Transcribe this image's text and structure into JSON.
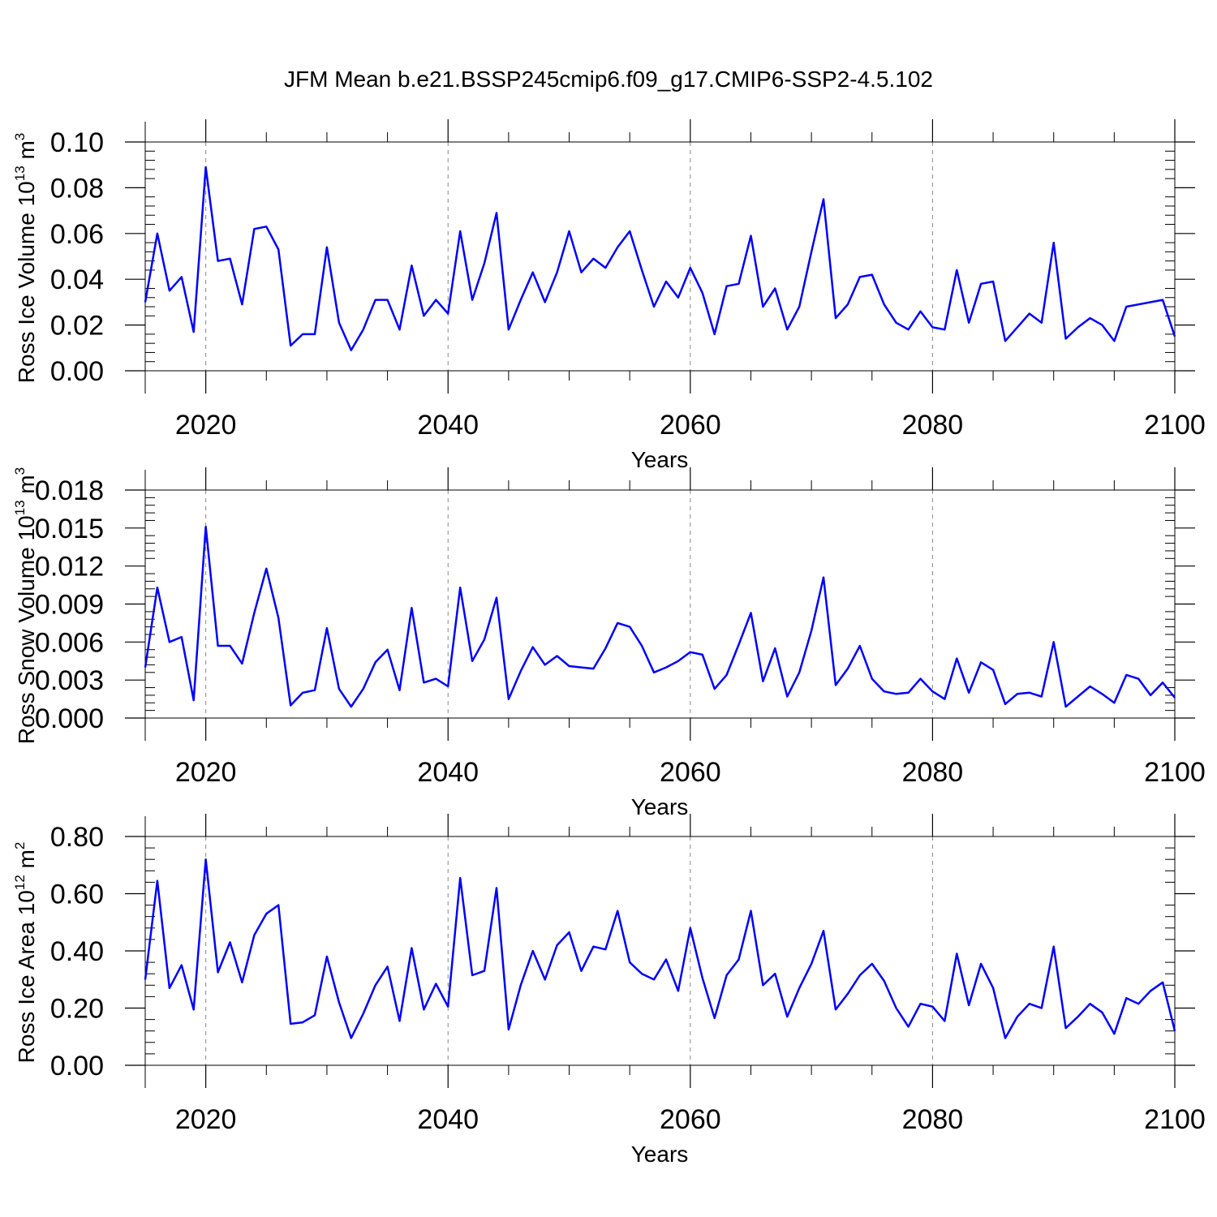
{
  "page": {
    "title": "JFM Mean b.e21.BSSP245cmip6.f09_g17.CMIP6-SSP2-4.5.102"
  },
  "style": {
    "line_color": "#0000ff",
    "axis_color": "#000000",
    "grid_color": "#888888"
  },
  "chart_data": [
    {
      "type": "line",
      "title": "",
      "xlabel": "Years",
      "ylabel": "Ross Ice Volume 10",
      "ylabel_sup": "13",
      "ylabel_unit": "m",
      "ylabel_unit_sup": "3",
      "xlim": [
        2015,
        2100
      ],
      "ylim": [
        0.0,
        0.1
      ],
      "xticks": [
        2020,
        2040,
        2060,
        2080,
        2100
      ],
      "yticks": [
        "0.00",
        "0.02",
        "0.04",
        "0.06",
        "0.08",
        "0.10"
      ],
      "grid": "vertical dashed at major x ticks",
      "series": [
        {
          "x": [
            2015,
            2016,
            2017,
            2018,
            2019,
            2020,
            2021,
            2022,
            2023,
            2024,
            2025,
            2026,
            2027,
            2028,
            2029,
            2030,
            2031,
            2032,
            2033,
            2034,
            2035,
            2036,
            2037,
            2038,
            2039,
            2040,
            2041,
            2042,
            2043,
            2044,
            2045,
            2046,
            2047,
            2048,
            2049,
            2050,
            2051,
            2052,
            2053,
            2054,
            2055,
            2056,
            2057,
            2058,
            2059,
            2060,
            2061,
            2062,
            2063,
            2064,
            2065,
            2066,
            2067,
            2068,
            2069,
            2070,
            2071,
            2072,
            2073,
            2074,
            2075,
            2076,
            2077,
            2078,
            2079,
            2080,
            2081,
            2082,
            2083,
            2084,
            2085,
            2086,
            2087,
            2088,
            2089,
            2090,
            2091,
            2092,
            2093,
            2094,
            2095,
            2096,
            2099,
            2100
          ],
          "y": [
            0.03,
            0.06,
            0.035,
            0.041,
            0.017,
            0.089,
            0.048,
            0.049,
            0.029,
            0.062,
            0.063,
            0.053,
            0.011,
            0.016,
            0.016,
            0.054,
            0.021,
            0.009,
            0.018,
            0.031,
            0.031,
            0.018,
            0.046,
            0.024,
            0.031,
            0.025,
            0.061,
            0.031,
            0.047,
            0.069,
            0.018,
            0.031,
            0.043,
            0.03,
            0.043,
            0.061,
            0.043,
            0.049,
            0.045,
            0.054,
            0.061,
            0.044,
            0.028,
            0.039,
            0.032,
            0.045,
            0.034,
            0.016,
            0.037,
            0.038,
            0.059,
            0.028,
            0.036,
            0.018,
            0.028,
            0.052,
            0.075,
            0.023,
            0.029,
            0.041,
            0.042,
            0.029,
            0.021,
            0.018,
            0.026,
            0.019,
            0.018,
            0.044,
            0.021,
            0.038,
            0.039,
            0.013,
            0.019,
            0.025,
            0.021,
            0.056,
            0.014,
            0.019,
            0.023,
            0.02,
            0.013,
            0.028,
            0.031,
            0.015
          ]
        }
      ]
    },
    {
      "type": "line",
      "title": "",
      "xlabel": "Years",
      "ylabel": "Ross Snow Volume 10",
      "ylabel_sup": "13",
      "ylabel_unit": "m",
      "ylabel_unit_sup": "3",
      "xlim": [
        2015,
        2100
      ],
      "ylim": [
        0.0,
        0.018
      ],
      "xticks": [
        2020,
        2040,
        2060,
        2080,
        2100
      ],
      "yticks": [
        "0.000",
        "0.003",
        "0.006",
        "0.009",
        "0.012",
        "0.015",
        "0.018"
      ],
      "grid": "vertical dashed at major x ticks",
      "series": [
        {
          "x": [
            2015,
            2016,
            2017,
            2018,
            2019,
            2020,
            2021,
            2022,
            2023,
            2024,
            2025,
            2026,
            2027,
            2028,
            2029,
            2030,
            2031,
            2032,
            2033,
            2034,
            2035,
            2036,
            2037,
            2038,
            2039,
            2040,
            2041,
            2042,
            2043,
            2044,
            2045,
            2046,
            2047,
            2048,
            2049,
            2050,
            2051,
            2052,
            2053,
            2054,
            2055,
            2056,
            2057,
            2058,
            2059,
            2060,
            2061,
            2062,
            2063,
            2064,
            2065,
            2066,
            2067,
            2068,
            2069,
            2070,
            2071,
            2072,
            2073,
            2074,
            2075,
            2076,
            2077,
            2078,
            2079,
            2080,
            2081,
            2082,
            2083,
            2084,
            2085,
            2086,
            2087,
            2088,
            2089,
            2090,
            2091,
            2092,
            2093,
            2094,
            2095,
            2096,
            2097,
            2098,
            2099,
            2100
          ],
          "y": [
            0.004,
            0.0103,
            0.006,
            0.0064,
            0.0014,
            0.0151,
            0.0057,
            0.0057,
            0.0043,
            0.0083,
            0.0118,
            0.0079,
            0.001,
            0.002,
            0.0022,
            0.0071,
            0.0023,
            0.0009,
            0.0023,
            0.0044,
            0.0054,
            0.0022,
            0.0087,
            0.0028,
            0.0031,
            0.0025,
            0.0103,
            0.0045,
            0.0062,
            0.0095,
            0.0015,
            0.0037,
            0.0056,
            0.0042,
            0.0049,
            0.0041,
            0.004,
            0.0039,
            0.0055,
            0.0075,
            0.0072,
            0.0057,
            0.0036,
            0.004,
            0.0045,
            0.0052,
            0.005,
            0.0023,
            0.0034,
            0.0058,
            0.0083,
            0.0029,
            0.0055,
            0.0017,
            0.0036,
            0.0069,
            0.0111,
            0.0026,
            0.0039,
            0.0057,
            0.0031,
            0.0021,
            0.0019,
            0.002,
            0.0031,
            0.0021,
            0.0015,
            0.0047,
            0.002,
            0.0044,
            0.0038,
            0.0011,
            0.0019,
            0.002,
            0.0017,
            0.006,
            0.0009,
            0.0017,
            0.0025,
            0.0019,
            0.0012,
            0.0034,
            0.0031,
            0.0018,
            0.0028,
            0.0016
          ]
        }
      ]
    },
    {
      "type": "line",
      "title": "",
      "xlabel": "Years",
      "ylabel": "Ross Ice Area 10",
      "ylabel_sup": "12",
      "ylabel_unit": "m",
      "ylabel_unit_sup": "2",
      "xlim": [
        2015,
        2100
      ],
      "ylim": [
        0.0,
        0.8
      ],
      "xticks": [
        2020,
        2040,
        2060,
        2080,
        2100
      ],
      "yticks": [
        "0.00",
        "0.20",
        "0.40",
        "0.60",
        "0.80"
      ],
      "grid": "vertical dashed at major x ticks",
      "series": [
        {
          "x": [
            2015,
            2016,
            2017,
            2018,
            2019,
            2020,
            2021,
            2022,
            2023,
            2024,
            2025,
            2026,
            2027,
            2028,
            2029,
            2030,
            2031,
            2032,
            2033,
            2034,
            2035,
            2036,
            2037,
            2038,
            2039,
            2040,
            2041,
            2042,
            2043,
            2044,
            2045,
            2046,
            2047,
            2048,
            2049,
            2050,
            2051,
            2052,
            2053,
            2054,
            2055,
            2056,
            2057,
            2058,
            2059,
            2060,
            2061,
            2062,
            2063,
            2064,
            2065,
            2066,
            2067,
            2068,
            2069,
            2070,
            2071,
            2072,
            2073,
            2074,
            2075,
            2076,
            2077,
            2078,
            2079,
            2080,
            2081,
            2082,
            2083,
            2084,
            2085,
            2086,
            2087,
            2088,
            2089,
            2090,
            2091,
            2092,
            2093,
            2094,
            2095,
            2096,
            2097,
            2098,
            2099,
            2100
          ],
          "y": [
            0.3,
            0.645,
            0.27,
            0.35,
            0.195,
            0.72,
            0.325,
            0.43,
            0.29,
            0.455,
            0.53,
            0.56,
            0.145,
            0.15,
            0.175,
            0.38,
            0.22,
            0.095,
            0.18,
            0.28,
            0.345,
            0.155,
            0.41,
            0.195,
            0.285,
            0.205,
            0.655,
            0.315,
            0.33,
            0.62,
            0.125,
            0.28,
            0.4,
            0.3,
            0.42,
            0.465,
            0.33,
            0.415,
            0.405,
            0.54,
            0.36,
            0.32,
            0.3,
            0.37,
            0.26,
            0.48,
            0.305,
            0.165,
            0.315,
            0.37,
            0.54,
            0.28,
            0.32,
            0.17,
            0.27,
            0.355,
            0.47,
            0.195,
            0.25,
            0.315,
            0.355,
            0.295,
            0.2,
            0.135,
            0.215,
            0.205,
            0.155,
            0.39,
            0.21,
            0.355,
            0.27,
            0.095,
            0.17,
            0.215,
            0.2,
            0.415,
            0.13,
            0.17,
            0.215,
            0.185,
            0.11,
            0.235,
            0.215,
            0.26,
            0.29,
            0.12
          ]
        }
      ]
    }
  ]
}
